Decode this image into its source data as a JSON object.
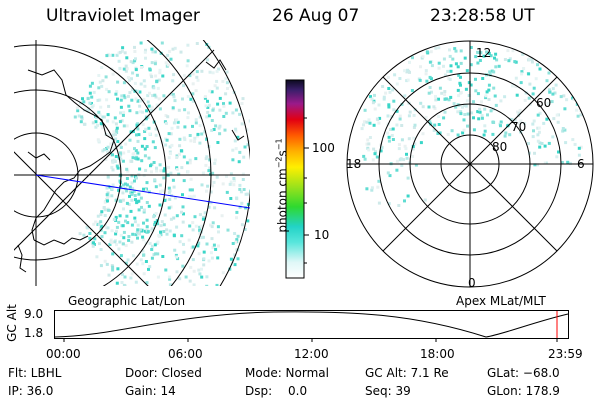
{
  "header": {
    "title": "Ultraviolet Imager",
    "date": "26 Aug 07",
    "time": "23:28:58 UT"
  },
  "colorbar": {
    "unit_label": "photon cm",
    "unit_sup1": "−2",
    "unit_mid": "s",
    "unit_sup2": "−1",
    "ticks": [
      "100",
      "10"
    ]
  },
  "left_map": {
    "label": "Geographic Lat/Lon"
  },
  "right_map": {
    "label": "Apex  MLat/MLT",
    "mlt_labels": [
      "12",
      "18",
      "6",
      "0"
    ],
    "lat_labels": [
      "60",
      "70",
      "80"
    ]
  },
  "altitude_plot": {
    "ylabel": "GC Alt",
    "yticks": [
      "9.0",
      "1.8"
    ],
    "xticks": [
      "00:00",
      "06:00",
      "12:00",
      "18:00",
      "23:59"
    ]
  },
  "footer": {
    "flt": "Flt: LBHL",
    "ip": "IP: 36.0",
    "door": "Door: Closed",
    "gain": "Gain: 14",
    "mode": "Mode: Normal",
    "dsp_label": "Dsp:",
    "dsp_value": "0.0",
    "gc_alt": "GC Alt: 7.1 Re",
    "seq": "Seq: 39",
    "glat": "GLat: −68.0",
    "glon": "GLon: 178.9"
  }
}
